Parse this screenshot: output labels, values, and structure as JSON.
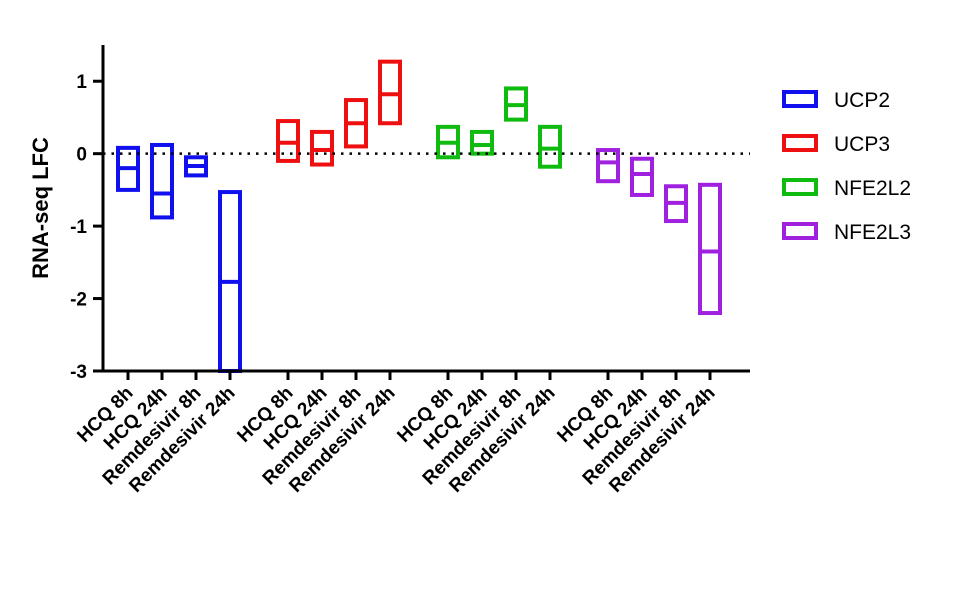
{
  "chart_data": {
    "type": "floating-bar",
    "title": "",
    "xlabel": "",
    "ylabel": "RNA-seq LFC",
    "ylim": [
      -3,
      1.5
    ],
    "yticks": [
      -3,
      -2,
      -1,
      0,
      1
    ],
    "reference_line": 0,
    "groups": [
      {
        "name": "UCP2",
        "color": "#1010ee",
        "bars": [
          {
            "category": "HCQ 8h",
            "low": -0.5,
            "mid": -0.2,
            "high": 0.08
          },
          {
            "category": "HCQ 24h",
            "low": -0.88,
            "mid": -0.55,
            "high": 0.12
          },
          {
            "category": "Remdesivir 8h",
            "low": -0.3,
            "mid": -0.17,
            "high": -0.05
          },
          {
            "category": "Remdesivir 24h",
            "low": -3.0,
            "mid": -1.77,
            "high": -0.53
          }
        ]
      },
      {
        "name": "UCP3",
        "color": "#ee1010",
        "bars": [
          {
            "category": "HCQ 8h",
            "low": -0.1,
            "mid": 0.15,
            "high": 0.45
          },
          {
            "category": "HCQ 24h",
            "low": -0.15,
            "mid": 0.05,
            "high": 0.3
          },
          {
            "category": "Remdesivir 8h",
            "low": 0.1,
            "mid": 0.42,
            "high": 0.74
          },
          {
            "category": "Remdesivir 24h",
            "low": 0.42,
            "mid": 0.82,
            "high": 1.27
          }
        ]
      },
      {
        "name": "NFE2L2",
        "color": "#10bb10",
        "bars": [
          {
            "category": "HCQ 8h",
            "low": -0.05,
            "mid": 0.15,
            "high": 0.37
          },
          {
            "category": "HCQ 24h",
            "low": 0.0,
            "mid": 0.12,
            "high": 0.3
          },
          {
            "category": "Remdesivir 8h",
            "low": 0.47,
            "mid": 0.67,
            "high": 0.9
          },
          {
            "category": "Remdesivir 24h",
            "low": -0.18,
            "mid": 0.07,
            "high": 0.37
          }
        ]
      },
      {
        "name": "NFE2L3",
        "color": "#a020e0",
        "bars": [
          {
            "category": "HCQ 8h",
            "low": -0.38,
            "mid": -0.12,
            "high": 0.05
          },
          {
            "category": "HCQ 24h",
            "low": -0.57,
            "mid": -0.28,
            "high": -0.07
          },
          {
            "category": "Remdesivir 8h",
            "low": -0.93,
            "mid": -0.68,
            "high": -0.45
          },
          {
            "category": "Remdesivir 24h",
            "low": -2.2,
            "mid": -1.35,
            "high": -0.43
          }
        ]
      }
    ],
    "legend": {
      "position": "right",
      "entries": [
        "UCP2",
        "UCP3",
        "NFE2L2",
        "NFE2L3"
      ]
    }
  }
}
